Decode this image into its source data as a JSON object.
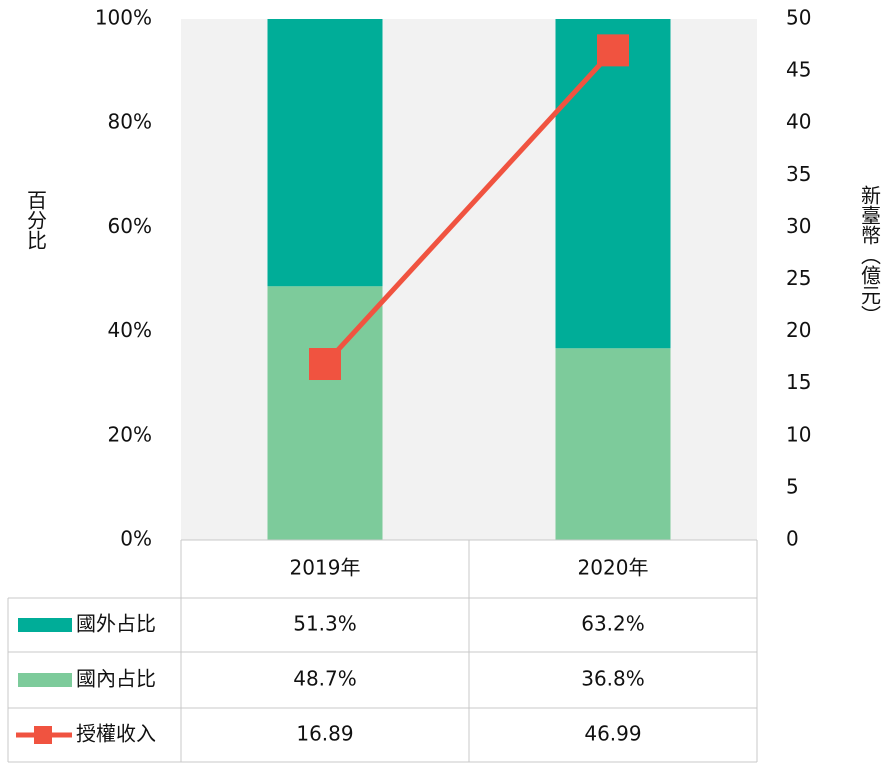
{
  "chart_data": {
    "type": "bar",
    "categories": [
      "2019年",
      "2020年"
    ],
    "series": [
      {
        "name": "國外占比",
        "color": "#00ad98",
        "values": [
          51.3,
          63.2
        ],
        "value_labels": [
          "51.3%",
          "63.2%"
        ]
      },
      {
        "name": "國內占比",
        "color": "#7dcb9b",
        "values": [
          48.7,
          36.8
        ],
        "value_labels": [
          "48.7%",
          "36.8%"
        ]
      },
      {
        "name": "授權收入",
        "type": "line",
        "axis": "y2",
        "color": "#f05340",
        "values": [
          16.89,
          46.99
        ]
      }
    ],
    "ylabel": "百分比",
    "y2label": "新臺幣（億元）",
    "ylim": [
      0,
      100
    ],
    "yticks": [
      {
        "value": 0,
        "label": "0%"
      },
      {
        "value": 20,
        "label": "20%"
      },
      {
        "value": 40,
        "label": "40%"
      },
      {
        "value": 60,
        "label": "60%"
      },
      {
        "value": 80,
        "label": "80%"
      },
      {
        "value": 100,
        "label": "100%"
      }
    ],
    "y2lim": [
      0,
      50
    ],
    "y2ticks": [
      0,
      5,
      10,
      15,
      20,
      25,
      30,
      35,
      40,
      45,
      50
    ],
    "stacked": true
  }
}
